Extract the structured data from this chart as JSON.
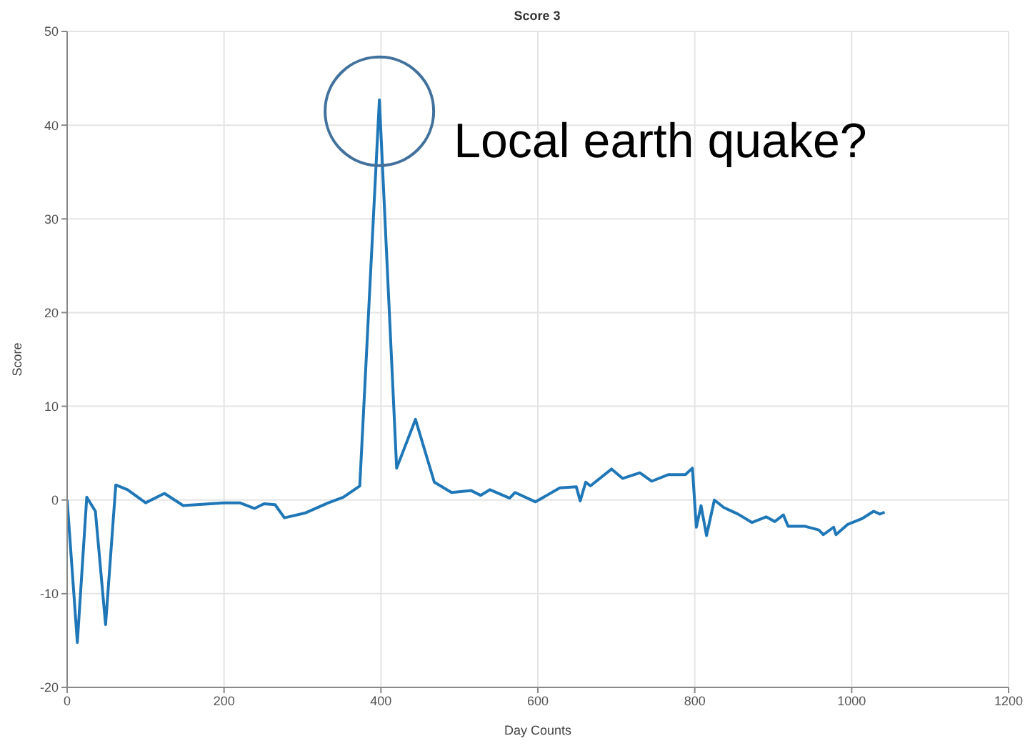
{
  "chart_data": {
    "type": "line",
    "title": "Score 3",
    "xlabel": "Day Counts",
    "ylabel": "Score",
    "x": [
      0,
      13,
      25,
      36,
      49,
      62,
      77,
      100,
      124,
      148,
      200,
      220,
      239,
      251,
      265,
      277,
      303,
      333,
      352,
      373,
      398,
      420,
      444,
      468,
      490,
      515,
      527,
      539,
      564,
      571,
      597,
      628,
      649,
      654,
      661,
      667,
      694,
      708,
      730,
      745,
      766,
      788,
      797,
      802,
      808,
      815,
      825,
      837,
      855,
      873,
      891,
      902,
      913,
      919,
      940,
      958,
      964,
      977,
      980,
      995,
      1013,
      1028,
      1036,
      1042
    ],
    "series": [
      {
        "color": "#1f77b8",
        "values": [
          0,
          -15.2,
          0.3,
          -1.2,
          -13.3,
          1.6,
          1.1,
          -0.3,
          0.7,
          -0.6,
          -0.3,
          -0.3,
          -0.9,
          -0.4,
          -0.5,
          -1.9,
          -1.4,
          -0.3,
          0.3,
          1.5,
          42.7,
          3.4,
          8.6,
          1.9,
          0.8,
          1.0,
          0.5,
          1.1,
          0.2,
          0.8,
          -0.2,
          1.3,
          1.4,
          -0.1,
          1.9,
          1.5,
          3.3,
          2.3,
          2.9,
          2.0,
          2.7,
          2.7,
          3.4,
          -2.9,
          -0.6,
          -3.8,
          0,
          -0.8,
          -1.5,
          -2.4,
          -1.8,
          -2.3,
          -1.6,
          -2.8,
          -2.8,
          -3.2,
          -3.7,
          -2.9,
          -3.7,
          -2.6,
          -2.0,
          -1.2,
          -1.5,
          -1.3
        ]
      }
    ],
    "xlim": [
      0,
      1200
    ],
    "xticks": [
      0,
      200,
      400,
      600,
      800,
      1000,
      1200
    ],
    "ylim": [
      -20,
      50
    ],
    "yticks": [
      -20,
      -10,
      0,
      10,
      20,
      30,
      40,
      50
    ],
    "grid": true,
    "marker": "none",
    "line_style": "solid",
    "annotations": [
      {
        "text": "Local earth quake?",
        "x": 398,
        "y": 42.7
      }
    ]
  }
}
